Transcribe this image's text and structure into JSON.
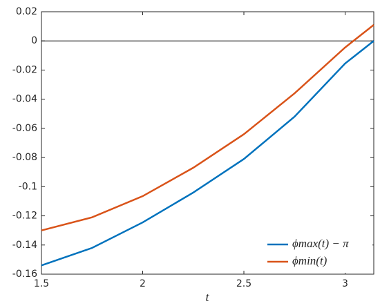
{
  "chart_data": {
    "type": "line",
    "xlabel": "t",
    "x": [
      1.5,
      1.75,
      2,
      2.25,
      2.5,
      2.75,
      3,
      3.1416
    ],
    "series": [
      {
        "name": "ϕmax(t) − π",
        "color": "#0072bd",
        "values": [
          -0.154,
          -0.142,
          -0.1245,
          -0.104,
          -0.081,
          -0.052,
          -0.0155,
          0
        ]
      },
      {
        "name": "ϕmin(t)",
        "color": "#d95319",
        "values": [
          -0.13,
          -0.121,
          -0.1065,
          -0.087,
          -0.064,
          -0.036,
          -0.0045,
          0.011
        ]
      }
    ],
    "reference_line": 0,
    "xlim": [
      1.5,
      3.1416
    ],
    "ylim": [
      -0.16,
      0.02
    ],
    "xticks": [
      1.5,
      2,
      2.5,
      3
    ],
    "yticks": [
      -0.16,
      -0.14,
      -0.12,
      -0.1,
      -0.08,
      -0.06,
      -0.04,
      -0.02,
      0,
      0.02
    ],
    "legend": "lower right"
  }
}
